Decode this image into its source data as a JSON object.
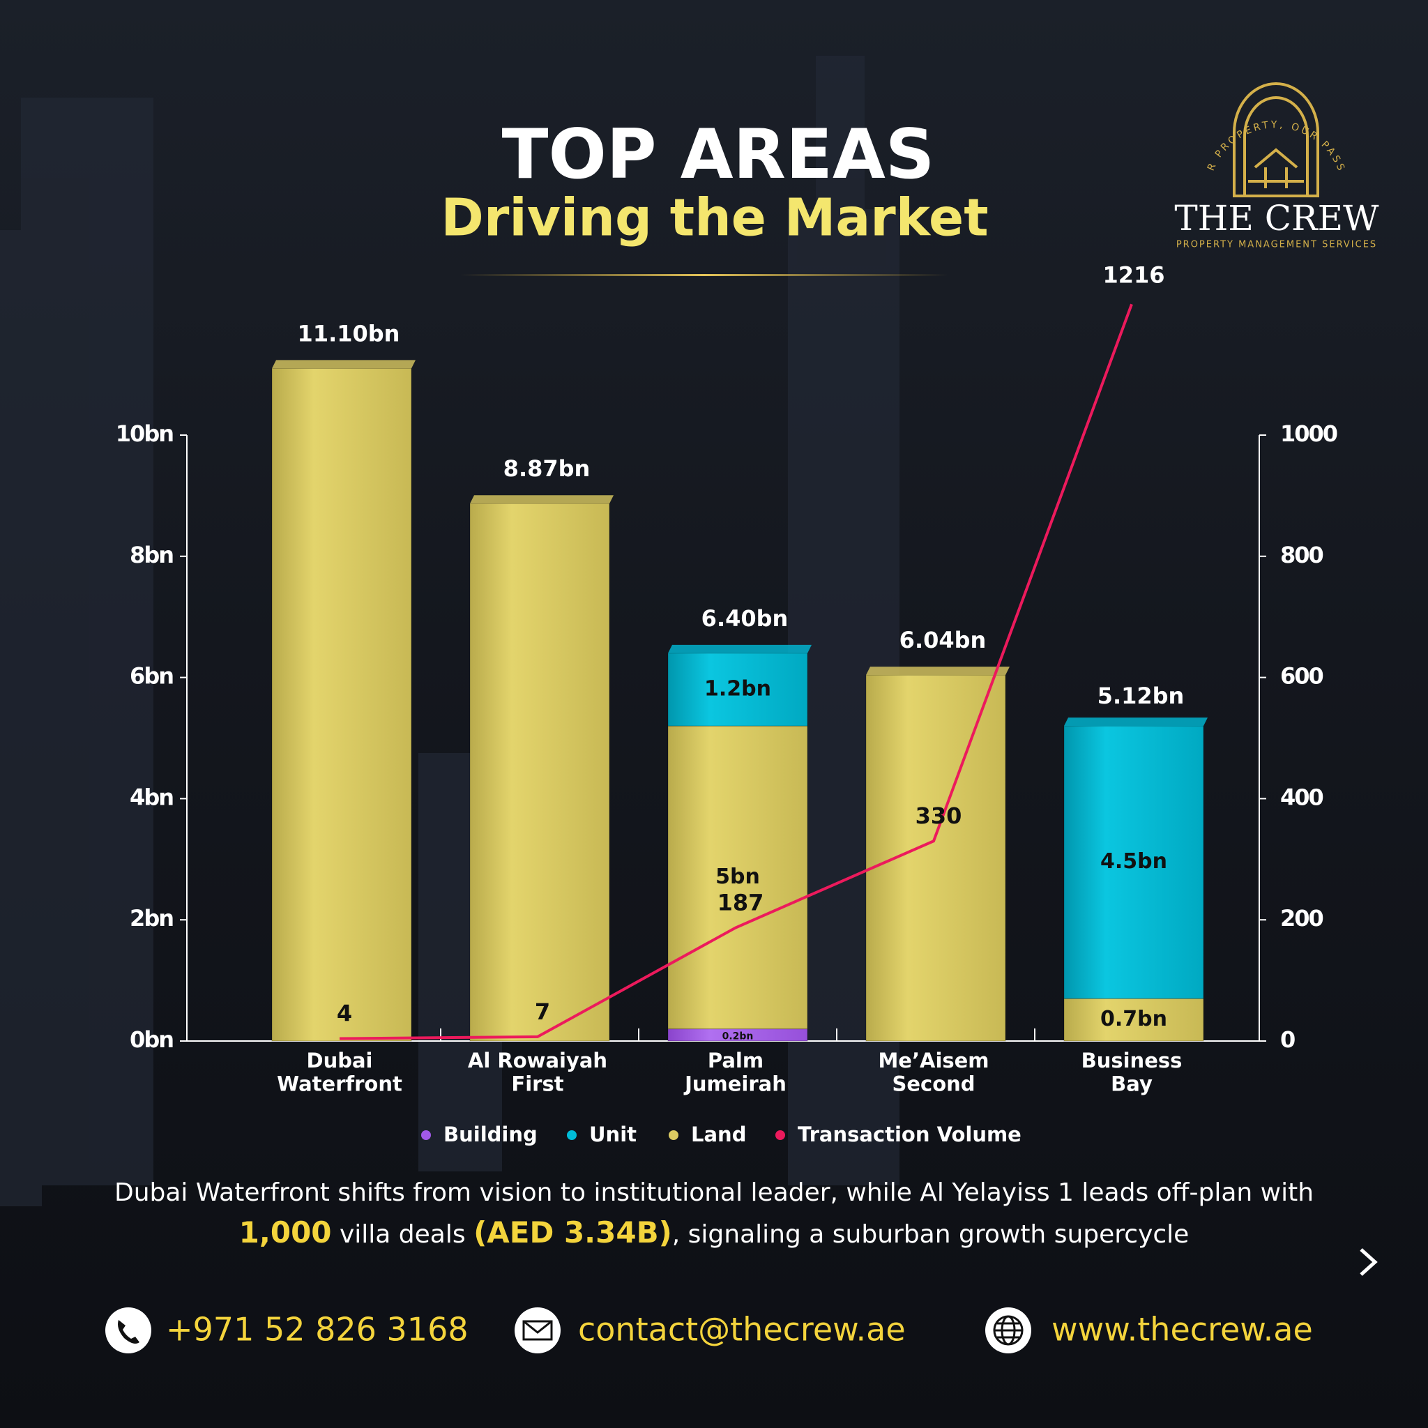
{
  "header": {
    "title": "TOP AREAS",
    "subtitle": "Driving the Market"
  },
  "logo": {
    "tagline": "YOUR PROPERTY, OUR PASSION",
    "name": "THE CREW",
    "tagline2": "PROPERTY MANAGEMENT SERVICES"
  },
  "chart_data": {
    "type": "bar",
    "stacked": true,
    "categories": [
      "Dubai\nWaterfront",
      "Al Rowaiyah\nFirst",
      "Palm\nJumeirah",
      "Me’Aisem\nSecond",
      "Business\nBay"
    ],
    "series": [
      {
        "name": "Building",
        "color": "#a259e8",
        "values": [
          null,
          null,
          0.2,
          null,
          null
        ],
        "value_labels": [
          null,
          null,
          "0.2bn",
          null,
          null
        ]
      },
      {
        "name": "Land",
        "color": "#dccb62",
        "values": [
          11.1,
          8.87,
          5,
          6.04,
          0.7
        ],
        "value_labels": [
          null,
          null,
          "5bn",
          null,
          "0.7bn"
        ]
      },
      {
        "name": "Unit",
        "color": "#00bcd8",
        "values": [
          null,
          null,
          1.2,
          null,
          4.5
        ],
        "value_labels": [
          null,
          null,
          "1.2bn",
          null,
          "4.5bn"
        ]
      },
      {
        "name": "Transaction Volume",
        "type": "line",
        "axis": "y2",
        "color": "#ec1a5c",
        "values": [
          4,
          7,
          187,
          330,
          1216
        ]
      }
    ],
    "totals": {
      "values": [
        11.1,
        8.87,
        6.4,
        6.04,
        5.12
      ],
      "value_labels": [
        "11.10bn",
        "8.87bn",
        "6.40bn",
        "6.04bn",
        "5.12bn"
      ]
    },
    "ylim": [
      0,
      10
    ],
    "yticks": [
      {
        "value": 0,
        "label": "0bn"
      },
      {
        "value": 2,
        "label": "2bn"
      },
      {
        "value": 4,
        "label": "4bn"
      },
      {
        "value": 6,
        "label": "6bn"
      },
      {
        "value": 8,
        "label": "8bn"
      },
      {
        "value": 10,
        "label": "10bn"
      }
    ],
    "y2lim": [
      0,
      1000
    ],
    "y2ticks": [
      0,
      200,
      400,
      600,
      800,
      1000
    ],
    "legend": "bottom"
  },
  "caption": {
    "parts": [
      "Dubai Waterfront shifts from vision to institutional leader, while Al Yelayiss 1 leads off-plan with ",
      "1,000",
      " villa deals ",
      "(AED 3.34B)",
      ", signaling a suburban growth supercycle"
    ]
  },
  "contacts": {
    "phone": "+971 52 826 3168",
    "email": "contact@thecrew.ae",
    "website": "www.thecrew.ae"
  }
}
